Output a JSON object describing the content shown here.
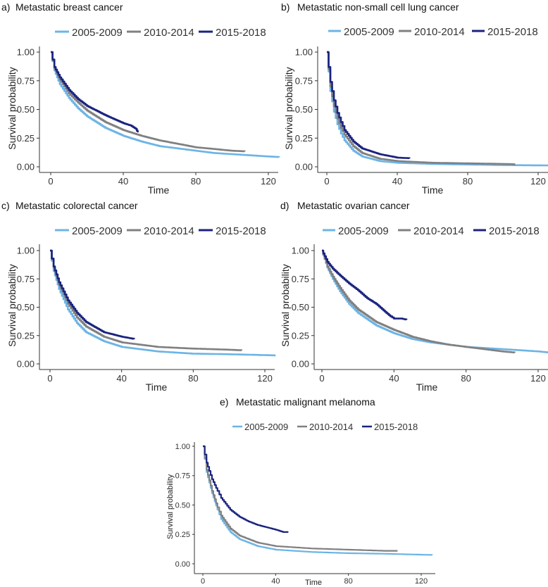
{
  "colors": {
    "2005-2009": "#6cb4e6",
    "2010-2014": "#808080",
    "2015-2018": "#1a237e"
  },
  "chart_data": [
    {
      "id": "a",
      "type": "line",
      "label": "a)",
      "title": "Metastatic breast cancer",
      "xlabel": "Time",
      "ylabel": "Survival probability",
      "xlim": [
        0,
        125
      ],
      "ylim": [
        0,
        1
      ],
      "xticks": [
        "0",
        "40",
        "80",
        "120"
      ],
      "yticks": [
        "0.00",
        "0.25",
        "0.50",
        "0.75",
        "1.00"
      ],
      "legend": [
        "2005-2009",
        "2010-2014",
        "2015-2018"
      ],
      "series": [
        {
          "name": "2005-2009",
          "x": [
            0,
            2,
            5,
            10,
            15,
            20,
            30,
            40,
            50,
            60,
            70,
            80,
            90,
            100,
            110,
            120,
            126
          ],
          "y": [
            1.0,
            0.84,
            0.72,
            0.6,
            0.51,
            0.44,
            0.34,
            0.27,
            0.22,
            0.18,
            0.16,
            0.14,
            0.12,
            0.11,
            0.1,
            0.09,
            0.085
          ]
        },
        {
          "name": "2010-2014",
          "x": [
            0,
            2,
            5,
            10,
            15,
            20,
            30,
            40,
            50,
            60,
            70,
            80,
            90,
            100,
            107
          ],
          "y": [
            1.0,
            0.86,
            0.76,
            0.64,
            0.56,
            0.49,
            0.39,
            0.32,
            0.27,
            0.23,
            0.2,
            0.17,
            0.155,
            0.14,
            0.135
          ]
        },
        {
          "name": "2015-2018",
          "x": [
            0,
            2,
            5,
            10,
            15,
            20,
            30,
            40,
            44,
            47,
            48
          ],
          "y": [
            1.0,
            0.87,
            0.78,
            0.67,
            0.59,
            0.53,
            0.45,
            0.38,
            0.36,
            0.33,
            0.3
          ]
        }
      ]
    },
    {
      "id": "b",
      "type": "line",
      "label": "b)",
      "title": "Metastatic non-small cell lung cancer",
      "xlabel": "Time",
      "ylabel": "Survival probability",
      "xlim": [
        0,
        125
      ],
      "ylim": [
        0,
        1
      ],
      "xticks": [
        "0",
        "40",
        "80",
        "120"
      ],
      "yticks": [
        "0.00",
        "0.25",
        "0.50",
        "0.75",
        "1.00"
      ],
      "legend": [
        "2005-2009",
        "2010-2014",
        "2015-2018"
      ],
      "series": [
        {
          "name": "2005-2009",
          "x": [
            0,
            2,
            4,
            6,
            8,
            10,
            15,
            20,
            30,
            40,
            60,
            80,
            100,
            126
          ],
          "y": [
            1.0,
            0.66,
            0.48,
            0.37,
            0.29,
            0.23,
            0.14,
            0.09,
            0.05,
            0.035,
            0.025,
            0.02,
            0.015,
            0.012
          ]
        },
        {
          "name": "2010-2014",
          "x": [
            0,
            2,
            4,
            6,
            8,
            10,
            15,
            20,
            30,
            40,
            60,
            80,
            100,
            107
          ],
          "y": [
            1.0,
            0.7,
            0.53,
            0.42,
            0.34,
            0.28,
            0.18,
            0.12,
            0.07,
            0.05,
            0.035,
            0.03,
            0.025,
            0.022
          ]
        },
        {
          "name": "2015-2018",
          "x": [
            0,
            2,
            4,
            6,
            8,
            10,
            15,
            20,
            30,
            40,
            47
          ],
          "y": [
            1.0,
            0.74,
            0.58,
            0.47,
            0.39,
            0.32,
            0.22,
            0.16,
            0.11,
            0.08,
            0.075
          ]
        }
      ]
    },
    {
      "id": "c",
      "type": "line",
      "label": "c)",
      "title": "Metastatic colorectal cancer",
      "xlabel": "Time",
      "ylabel": "Survival probability",
      "xlim": [
        0,
        125
      ],
      "ylim": [
        0,
        1
      ],
      "xticks": [
        "0",
        "40",
        "80",
        "120"
      ],
      "yticks": [
        "0.00",
        "0.25",
        "0.50",
        "0.75",
        "1.00"
      ],
      "legend": [
        "2005-2009",
        "2010-2014",
        "2015-2018"
      ],
      "series": [
        {
          "name": "2005-2009",
          "x": [
            0,
            2,
            5,
            10,
            15,
            20,
            30,
            40,
            50,
            60,
            80,
            100,
            126
          ],
          "y": [
            1.0,
            0.82,
            0.66,
            0.48,
            0.36,
            0.28,
            0.2,
            0.15,
            0.13,
            0.11,
            0.09,
            0.085,
            0.075
          ]
        },
        {
          "name": "2010-2014",
          "x": [
            0,
            2,
            5,
            10,
            15,
            20,
            30,
            40,
            50,
            60,
            80,
            100,
            107
          ],
          "y": [
            1.0,
            0.85,
            0.7,
            0.53,
            0.41,
            0.33,
            0.24,
            0.19,
            0.17,
            0.15,
            0.135,
            0.125,
            0.12
          ]
        },
        {
          "name": "2015-2018",
          "x": [
            0,
            2,
            5,
            10,
            15,
            20,
            30,
            40,
            47
          ],
          "y": [
            1.0,
            0.86,
            0.72,
            0.56,
            0.45,
            0.37,
            0.28,
            0.24,
            0.22
          ]
        }
      ]
    },
    {
      "id": "d",
      "type": "line",
      "label": "d)",
      "title": "Metastatic ovarian cancer",
      "xlabel": "Time",
      "ylabel": "Survival probability",
      "xlim": [
        0,
        125
      ],
      "ylim": [
        0,
        1
      ],
      "xticks": [
        "0",
        "40",
        "80",
        "120"
      ],
      "yticks": [
        "0.00",
        "0.25",
        "0.50",
        "0.75",
        "1.00"
      ],
      "legend": [
        "2005-2009",
        "2010-2014",
        "2015-2018"
      ],
      "series": [
        {
          "name": "2005-2009",
          "x": [
            0,
            3,
            6,
            10,
            15,
            20,
            30,
            40,
            50,
            60,
            70,
            80,
            90,
            100,
            110,
            120,
            126
          ],
          "y": [
            1.0,
            0.85,
            0.75,
            0.64,
            0.53,
            0.45,
            0.34,
            0.27,
            0.22,
            0.19,
            0.17,
            0.15,
            0.14,
            0.13,
            0.12,
            0.11,
            0.1
          ]
        },
        {
          "name": "2010-2014",
          "x": [
            0,
            3,
            6,
            10,
            15,
            20,
            30,
            40,
            50,
            60,
            70,
            80,
            90,
            100,
            107
          ],
          "y": [
            1.0,
            0.86,
            0.77,
            0.67,
            0.56,
            0.48,
            0.37,
            0.3,
            0.24,
            0.2,
            0.17,
            0.15,
            0.13,
            0.11,
            0.1
          ]
        },
        {
          "name": "2015-2018",
          "x": [
            0,
            3,
            6,
            10,
            15,
            20,
            25,
            30,
            35,
            38,
            40,
            44,
            47
          ],
          "y": [
            1.0,
            0.9,
            0.84,
            0.78,
            0.71,
            0.65,
            0.58,
            0.53,
            0.46,
            0.42,
            0.4,
            0.4,
            0.39
          ]
        }
      ]
    },
    {
      "id": "e",
      "type": "line",
      "label": "e)",
      "title": "Metastatic malignant melanoma",
      "xlabel": "Time",
      "ylabel": "Survival probability",
      "xlim": [
        0,
        125
      ],
      "ylim": [
        0,
        1
      ],
      "xticks": [
        "0",
        "40",
        "80",
        "120"
      ],
      "yticks": [
        "0.00",
        "0.25",
        "0.50",
        "0.75",
        "1.00"
      ],
      "legend": [
        "2005-2009",
        "2010-2014",
        "2015-2018"
      ],
      "series": [
        {
          "name": "2005-2009",
          "x": [
            0,
            2,
            5,
            8,
            10,
            15,
            20,
            30,
            40,
            50,
            60,
            80,
            100,
            126
          ],
          "y": [
            1.0,
            0.78,
            0.6,
            0.46,
            0.38,
            0.27,
            0.21,
            0.15,
            0.12,
            0.11,
            0.1,
            0.09,
            0.085,
            0.075
          ]
        },
        {
          "name": "2010-2014",
          "x": [
            0,
            2,
            5,
            8,
            10,
            15,
            20,
            30,
            40,
            50,
            60,
            80,
            100,
            107
          ],
          "y": [
            1.0,
            0.8,
            0.62,
            0.48,
            0.41,
            0.3,
            0.24,
            0.18,
            0.15,
            0.14,
            0.13,
            0.12,
            0.11,
            0.11
          ]
        },
        {
          "name": "2015-2018",
          "x": [
            0,
            2,
            5,
            8,
            10,
            15,
            20,
            25,
            30,
            35,
            40,
            44,
            47
          ],
          "y": [
            1.0,
            0.86,
            0.72,
            0.62,
            0.56,
            0.46,
            0.4,
            0.36,
            0.33,
            0.31,
            0.29,
            0.27,
            0.27
          ]
        }
      ]
    }
  ]
}
